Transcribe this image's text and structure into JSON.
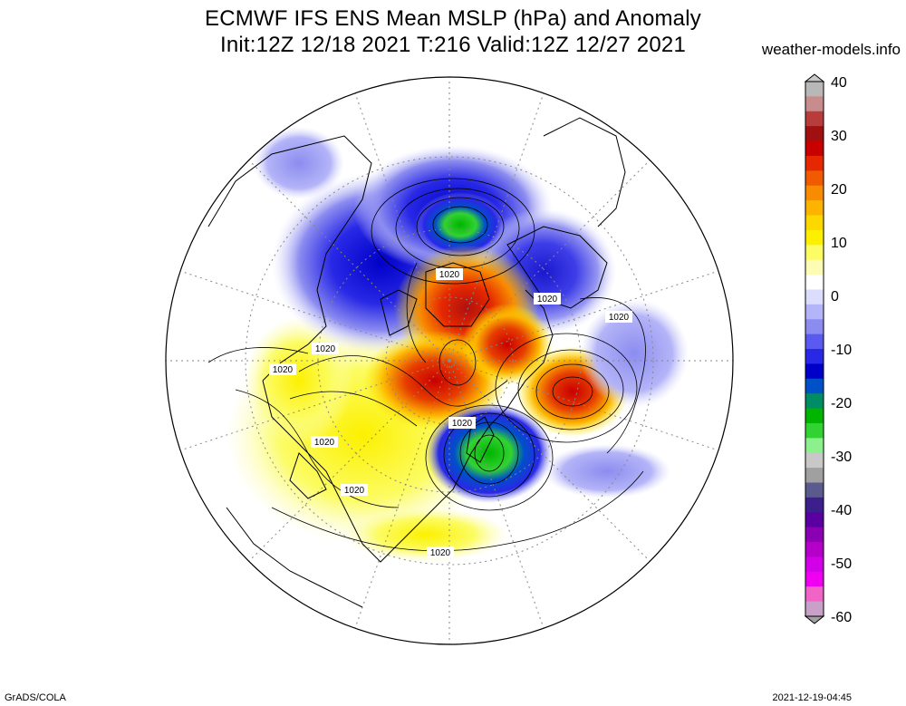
{
  "title": {
    "line1": "ECMWF IFS ENS Mean MSLP (hPa) and Anomaly",
    "line2": "Init:12Z 12/18 2021  T:216 Valid:12Z 12/27 2021"
  },
  "brand": "weather-models.info",
  "footer": {
    "software": "GrADS/COLA",
    "timestamp": "2021-12-19-04:45"
  },
  "colorbar": {
    "ticks": [
      "40",
      "30",
      "20",
      "10",
      "0",
      "-10",
      "-20",
      "-30",
      "-40",
      "-50",
      "-60"
    ],
    "colors": [
      "#b8b8b8",
      "#c88c8c",
      "#b83c3c",
      "#a01010",
      "#c80000",
      "#e62800",
      "#f05a00",
      "#f88c00",
      "#fcb400",
      "#fcd800",
      "#fcf000",
      "#fcfc64",
      "#fcfcb4",
      "#ffffff",
      "#dcdcfc",
      "#b4b4f8",
      "#8c8cf0",
      "#5a5af0",
      "#2828e6",
      "#0000c8",
      "#0050c8",
      "#008c64",
      "#00b400",
      "#32d232",
      "#8cf08c",
      "#c8c8c8",
      "#a0a0a0",
      "#5a5a8c",
      "#3c1e8c",
      "#5a00a0",
      "#8c00b4",
      "#b400c8",
      "#d200e6",
      "#f000f0",
      "#f064c8",
      "#c8a0c8"
    ]
  },
  "contour_label": "1020",
  "map": {
    "projection": "north-polar-stereographic",
    "colors": {
      "positive_strong": "#c80000",
      "positive_mid": "#f88c00",
      "positive_weak": "#fcf000",
      "negative_weak": "#8c8cf0",
      "negative_mid": "#2828e6",
      "negative_strong": "#00b400"
    }
  }
}
